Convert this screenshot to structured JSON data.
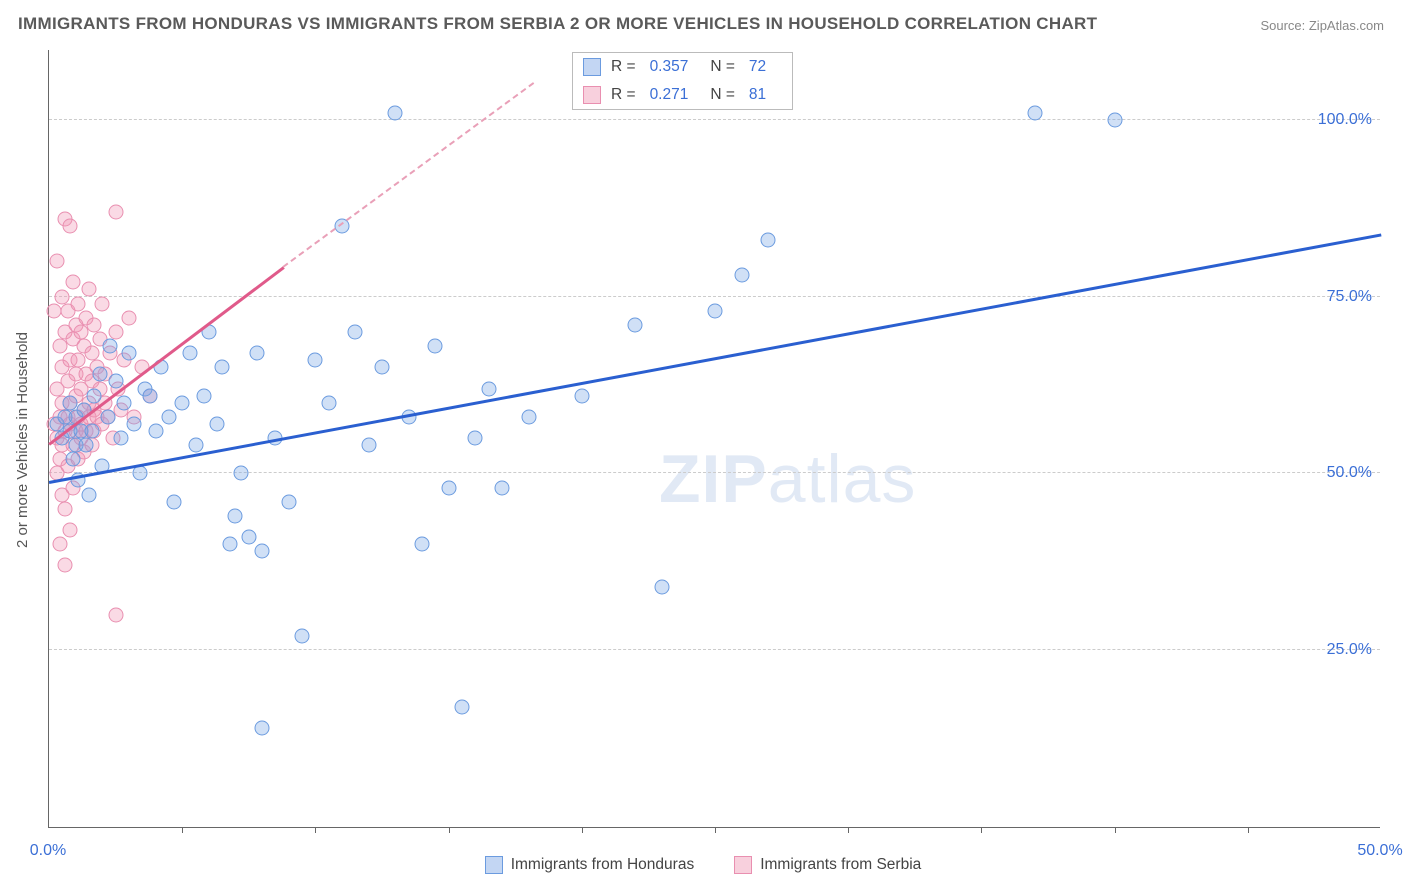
{
  "title": "IMMIGRANTS FROM HONDURAS VS IMMIGRANTS FROM SERBIA 2 OR MORE VEHICLES IN HOUSEHOLD CORRELATION CHART",
  "source_label": "Source: ZipAtlas.com",
  "yaxis_label": "2 or more Vehicles in Household",
  "watermark": {
    "bold": "ZIP",
    "rest": "atlas"
  },
  "chart": {
    "type": "scatter",
    "background_color": "#ffffff",
    "grid_color": "#cccccc",
    "axis_color": "#666666",
    "xlim": [
      0,
      50
    ],
    "ylim": [
      0,
      110
    ],
    "xticks": [
      0,
      50
    ],
    "xtick_labels": [
      "0.0%",
      "50.0%"
    ],
    "vticks_minor": [
      5,
      10,
      15,
      20,
      25,
      30,
      35,
      40,
      45
    ],
    "ygrid": [
      25,
      50,
      75,
      100
    ],
    "ytick_labels": [
      "25.0%",
      "50.0%",
      "75.0%",
      "100.0%"
    ],
    "tick_color": "#3b6fd6",
    "tick_fontsize": 16,
    "marker_size": 15,
    "series_a": {
      "label": "Immigrants from Honduras",
      "color_fill": "rgba(121,165,228,0.35)",
      "color_stroke": "#6b9bdf",
      "reg_color": "#2a5fd0",
      "R": "0.357",
      "N": "72",
      "regression": {
        "x1": 0,
        "y1": 48.5,
        "x2": 50,
        "y2": 83.5
      },
      "points": [
        [
          0.3,
          57
        ],
        [
          0.5,
          55
        ],
        [
          0.6,
          58
        ],
        [
          0.8,
          56
        ],
        [
          0.8,
          60
        ],
        [
          0.9,
          52
        ],
        [
          1.0,
          54
        ],
        [
          1.0,
          58
        ],
        [
          1.1,
          49
        ],
        [
          1.2,
          56
        ],
        [
          1.3,
          59
        ],
        [
          1.4,
          54
        ],
        [
          1.5,
          47
        ],
        [
          1.6,
          56
        ],
        [
          1.7,
          61
        ],
        [
          1.9,
          64
        ],
        [
          2.0,
          51
        ],
        [
          2.2,
          58
        ],
        [
          2.3,
          68
        ],
        [
          2.5,
          63
        ],
        [
          2.7,
          55
        ],
        [
          2.8,
          60
        ],
        [
          3.0,
          67
        ],
        [
          3.2,
          57
        ],
        [
          3.4,
          50
        ],
        [
          3.6,
          62
        ],
        [
          3.8,
          61
        ],
        [
          4.0,
          56
        ],
        [
          4.2,
          65
        ],
        [
          4.5,
          58
        ],
        [
          4.7,
          46
        ],
        [
          5.0,
          60
        ],
        [
          5.3,
          67
        ],
        [
          5.5,
          54
        ],
        [
          5.8,
          61
        ],
        [
          6.0,
          70
        ],
        [
          6.3,
          57
        ],
        [
          6.5,
          65
        ],
        [
          6.8,
          40
        ],
        [
          7.0,
          44
        ],
        [
          7.2,
          50
        ],
        [
          7.5,
          41
        ],
        [
          7.8,
          67
        ],
        [
          8.0,
          39
        ],
        [
          8.5,
          55
        ],
        [
          9.0,
          46
        ],
        [
          9.5,
          27
        ],
        [
          10.0,
          66
        ],
        [
          10.5,
          60
        ],
        [
          11.0,
          85
        ],
        [
          11.5,
          70
        ],
        [
          8.0,
          14
        ],
        [
          12.0,
          54
        ],
        [
          12.5,
          65
        ],
        [
          13.0,
          101
        ],
        [
          13.5,
          58
        ],
        [
          14.0,
          40
        ],
        [
          14.5,
          68
        ],
        [
          15.0,
          48
        ],
        [
          16.0,
          55
        ],
        [
          16.5,
          62
        ],
        [
          17.0,
          48
        ],
        [
          18.0,
          58
        ],
        [
          15.5,
          17
        ],
        [
          20.0,
          61
        ],
        [
          22.0,
          71
        ],
        [
          23.0,
          34
        ],
        [
          25.0,
          73
        ],
        [
          26.0,
          78
        ],
        [
          27.0,
          83
        ],
        [
          37.0,
          101
        ],
        [
          40.0,
          100
        ]
      ]
    },
    "series_b": {
      "label": "Immigrants from Serbia",
      "color_fill": "rgba(240,150,180,0.35)",
      "color_stroke": "#e98fb0",
      "reg_color": "#e05a8a",
      "R": "0.271",
      "N": "81",
      "regression_solid": {
        "x1": 0,
        "y1": 54,
        "x2": 8.8,
        "y2": 79
      },
      "regression_dashed": {
        "x1": 8.8,
        "y1": 79,
        "x2": 18.2,
        "y2": 105
      },
      "points": [
        [
          0.2,
          73
        ],
        [
          0.2,
          57
        ],
        [
          0.3,
          50
        ],
        [
          0.3,
          62
        ],
        [
          0.3,
          80
        ],
        [
          0.3,
          55
        ],
        [
          0.4,
          40
        ],
        [
          0.4,
          68
        ],
        [
          0.4,
          58
        ],
        [
          0.4,
          52
        ],
        [
          0.5,
          75
        ],
        [
          0.5,
          60
        ],
        [
          0.5,
          47
        ],
        [
          0.5,
          65
        ],
        [
          0.5,
          54
        ],
        [
          0.6,
          86
        ],
        [
          0.6,
          56
        ],
        [
          0.6,
          70
        ],
        [
          0.6,
          45
        ],
        [
          0.6,
          37
        ],
        [
          0.7,
          63
        ],
        [
          0.7,
          58
        ],
        [
          0.7,
          73
        ],
        [
          0.7,
          51
        ],
        [
          0.8,
          66
        ],
        [
          0.8,
          42
        ],
        [
          0.8,
          60
        ],
        [
          0.8,
          57
        ],
        [
          0.8,
          85
        ],
        [
          0.9,
          69
        ],
        [
          0.9,
          77
        ],
        [
          0.9,
          54
        ],
        [
          0.9,
          48
        ],
        [
          1.0,
          61
        ],
        [
          1.0,
          56
        ],
        [
          1.0,
          71
        ],
        [
          1.0,
          64
        ],
        [
          1.1,
          58
        ],
        [
          1.1,
          74
        ],
        [
          1.1,
          52
        ],
        [
          1.1,
          66
        ],
        [
          1.2,
          57
        ],
        [
          1.2,
          62
        ],
        [
          1.2,
          55
        ],
        [
          1.2,
          70
        ],
        [
          1.3,
          59
        ],
        [
          1.3,
          68
        ],
        [
          1.3,
          53
        ],
        [
          1.4,
          64
        ],
        [
          1.4,
          56
        ],
        [
          1.4,
          72
        ],
        [
          1.5,
          60
        ],
        [
          1.5,
          76
        ],
        [
          1.5,
          58
        ],
        [
          1.6,
          67
        ],
        [
          1.6,
          54
        ],
        [
          1.6,
          63
        ],
        [
          1.7,
          59
        ],
        [
          1.7,
          71
        ],
        [
          1.7,
          56
        ],
        [
          1.8,
          65
        ],
        [
          1.8,
          58
        ],
        [
          1.9,
          69
        ],
        [
          1.9,
          62
        ],
        [
          2.0,
          57
        ],
        [
          2.0,
          74
        ],
        [
          2.1,
          60
        ],
        [
          2.1,
          64
        ],
        [
          2.2,
          58
        ],
        [
          2.3,
          67
        ],
        [
          2.4,
          55
        ],
        [
          2.5,
          70
        ],
        [
          2.5,
          30
        ],
        [
          2.6,
          62
        ],
        [
          2.7,
          59
        ],
        [
          2.8,
          66
        ],
        [
          3.0,
          72
        ],
        [
          3.2,
          58
        ],
        [
          3.5,
          65
        ],
        [
          3.8,
          61
        ],
        [
          2.5,
          87
        ]
      ]
    }
  },
  "stats_legend": {
    "R_label": "R =",
    "N_label": "N ="
  },
  "bottom_legend": {
    "item_a": "Immigrants from Honduras",
    "item_b": "Immigrants from Serbia"
  }
}
